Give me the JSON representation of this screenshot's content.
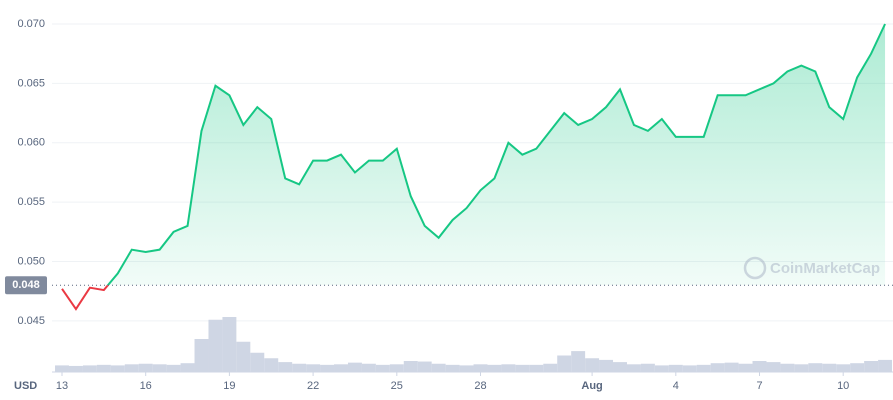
{
  "chart_data": {
    "type": "line",
    "categories": [
      "13",
      null,
      null,
      null,
      null,
      null,
      "16",
      null,
      null,
      null,
      null,
      null,
      "19",
      null,
      null,
      null,
      null,
      null,
      "22",
      null,
      null,
      null,
      null,
      null,
      "25",
      null,
      null,
      null,
      null,
      null,
      "28",
      null,
      null,
      null,
      null,
      null,
      null,
      null,
      "Aug",
      null,
      null,
      null,
      null,
      null,
      "4",
      null,
      null,
      null,
      null,
      null,
      "7",
      null,
      null,
      null,
      null,
      null,
      "10",
      null,
      null,
      null
    ],
    "price": {
      "up_color": "#16c784",
      "down_color": "#ea3943",
      "values": [
        0.0477,
        0.046,
        0.0478,
        0.0476,
        0.049,
        0.051,
        0.0508,
        0.051,
        0.0525,
        0.053,
        0.061,
        0.0648,
        0.064,
        0.0615,
        0.063,
        0.062,
        0.057,
        0.0565,
        0.0585,
        0.0585,
        0.059,
        0.0575,
        0.0585,
        0.0585,
        0.0595,
        0.0555,
        0.053,
        0.052,
        0.0535,
        0.0545,
        0.056,
        0.057,
        0.06,
        0.059,
        0.0595,
        0.061,
        0.0625,
        0.0615,
        0.062,
        0.063,
        0.0645,
        0.0615,
        0.061,
        0.062,
        0.0605,
        0.0605,
        0.0605,
        0.064,
        0.064,
        0.064,
        0.0645,
        0.065,
        0.066,
        0.0665,
        0.066,
        0.063,
        0.062,
        0.0655,
        0.0675,
        0.07
      ]
    },
    "volume": {
      "color": "#cfd6e4",
      "values": [
        12,
        11,
        12,
        13,
        12,
        14,
        15,
        14,
        13,
        16,
        60,
        95,
        100,
        55,
        35,
        25,
        18,
        15,
        14,
        13,
        14,
        17,
        15,
        13,
        14,
        20,
        19,
        15,
        13,
        12,
        14,
        13,
        14,
        13,
        13,
        15,
        30,
        38,
        25,
        22,
        18,
        14,
        15,
        12,
        13,
        12,
        13,
        16,
        17,
        15,
        20,
        18,
        15,
        14,
        16,
        15,
        14,
        16,
        20,
        22
      ]
    },
    "baseline": 0.048,
    "ylim": [
      0.0407,
      0.0716
    ],
    "yticks": [
      0.045,
      {
        "value": 0.05,
        "label": "0.050"
      },
      0.055,
      {
        "value": 0.06,
        "label": "0.060"
      },
      0.065,
      {
        "value": 0.07,
        "label": "0.070"
      }
    ],
    "currency": "USD",
    "watermark": "CoinMarketCap",
    "grid": true
  }
}
